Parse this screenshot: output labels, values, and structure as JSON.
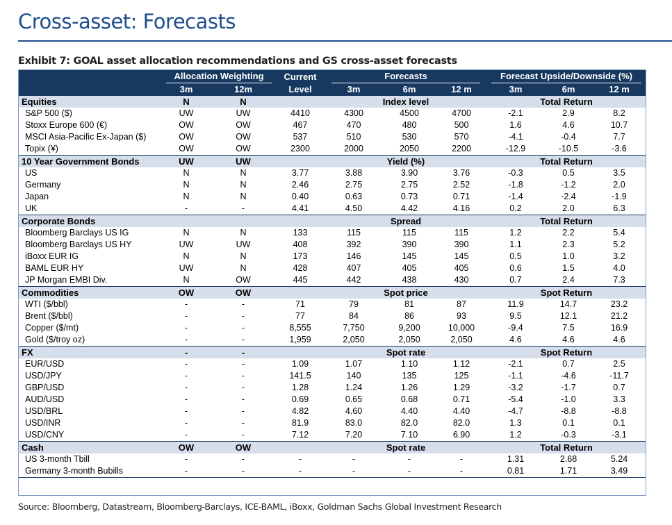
{
  "page_title": "Cross-asset: Forecasts",
  "exhibit_title": "Exhibit 7: GOAL asset allocation recommendations and GS cross-asset forecasts",
  "header": {
    "allocation_weighting": "Allocation Weighting",
    "current": "Current",
    "forecasts": "Forecasts",
    "upside": "Forecast Upside/Downside (%)",
    "alloc_3m": "3m",
    "alloc_12m": "12m",
    "level": "Level",
    "f_3m": "3m",
    "f_6m": "6m",
    "f_12m": "12 m",
    "u_3m": "3m",
    "u_6m": "6m",
    "u_12m": "12 m"
  },
  "sections": [
    {
      "name": "Equities",
      "alloc_3m": "N",
      "alloc_12m": "N",
      "forecast_label": "Index level",
      "return_label": "Total Return",
      "rows": [
        {
          "name": "S&P 500 ($)",
          "a3": "UW",
          "a12": "UW",
          "level": "4410",
          "f3": "4300",
          "f6": "4500",
          "f12": "4700",
          "u3": "-2.1",
          "u6": "2.9",
          "u12": "8.2"
        },
        {
          "name": "Stoxx Europe 600 (€)",
          "a3": "OW",
          "a12": "OW",
          "level": "467",
          "f3": "470",
          "f6": "480",
          "f12": "500",
          "u3": "1.6",
          "u6": "4.6",
          "u12": "10.7"
        },
        {
          "name": "MSCI Asia-Pacific Ex-Japan ($)",
          "a3": "OW",
          "a12": "OW",
          "level": "537",
          "f3": "510",
          "f6": "530",
          "f12": "570",
          "u3": "-4.1",
          "u6": "-0.4",
          "u12": "7.7"
        },
        {
          "name": "Topix (¥)",
          "a3": "OW",
          "a12": "OW",
          "level": "2300",
          "f3": "2000",
          "f6": "2050",
          "f12": "2200",
          "u3": "-12.9",
          "u6": "-10.5",
          "u12": "-3.6"
        }
      ]
    },
    {
      "name": "10 Year Government Bonds",
      "alloc_3m": "UW",
      "alloc_12m": "UW",
      "forecast_label": "Yield (%)",
      "return_label": "Total Return",
      "rows": [
        {
          "name": "US",
          "a3": "N",
          "a12": "N",
          "level": "3.77",
          "f3": "3.88",
          "f6": "3.90",
          "f12": "3.76",
          "u3": "-0.3",
          "u6": "0.5",
          "u12": "3.5"
        },
        {
          "name": "Germany",
          "a3": "N",
          "a12": "N",
          "level": "2.46",
          "f3": "2.75",
          "f6": "2.75",
          "f12": "2.52",
          "u3": "-1.8",
          "u6": "-1.2",
          "u12": "2.0"
        },
        {
          "name": "Japan",
          "a3": "N",
          "a12": "N",
          "level": "0.40",
          "f3": "0.63",
          "f6": "0.73",
          "f12": "0.71",
          "u3": "-1.4",
          "u6": "-2.4",
          "u12": "-1.9"
        },
        {
          "name": "UK",
          "a3": "-",
          "a12": "-",
          "level": "4.41",
          "f3": "4.50",
          "f6": "4.42",
          "f12": "4.16",
          "u3": "0.2",
          "u6": "2.0",
          "u12": "6.3"
        }
      ]
    },
    {
      "name": "Corporate Bonds",
      "alloc_3m": "",
      "alloc_12m": "",
      "forecast_label": "Spread",
      "return_label": "Total Return",
      "rows": [
        {
          "name": "Bloomberg Barclays US IG",
          "a3": "N",
          "a12": "N",
          "level": "133",
          "f3": "115",
          "f6": "115",
          "f12": "115",
          "u3": "1.2",
          "u6": "2.2",
          "u12": "5.4"
        },
        {
          "name": "Bloomberg Barclays US HY",
          "a3": "UW",
          "a12": "UW",
          "level": "408",
          "f3": "392",
          "f6": "390",
          "f12": "390",
          "u3": "1.1",
          "u6": "2.3",
          "u12": "5.2"
        },
        {
          "name": "iBoxx EUR IG",
          "a3": "N",
          "a12": "N",
          "level": "173",
          "f3": "146",
          "f6": "145",
          "f12": "145",
          "u3": "0.5",
          "u6": "1.0",
          "u12": "3.2"
        },
        {
          "name": "BAML EUR HY",
          "a3": "UW",
          "a12": "N",
          "level": "428",
          "f3": "407",
          "f6": "405",
          "f12": "405",
          "u3": "0.6",
          "u6": "1.5",
          "u12": "4.0"
        },
        {
          "name": "JP Morgan EMBI Div.",
          "a3": "N",
          "a12": "OW",
          "level": "445",
          "f3": "442",
          "f6": "438",
          "f12": "430",
          "u3": "0.7",
          "u6": "2.4",
          "u12": "7.3"
        }
      ]
    },
    {
      "name": "Commodities",
      "alloc_3m": "OW",
      "alloc_12m": "OW",
      "forecast_label": "Spot price",
      "return_label": "Spot Return",
      "rows": [
        {
          "name": "WTI  ($/bbl)",
          "a3": "-",
          "a12": "-",
          "level": "71",
          "f3": "79",
          "f6": "81",
          "f12": "87",
          "u3": "11.9",
          "u6": "14.7",
          "u12": "23.2"
        },
        {
          "name": "Brent ($/bbl)",
          "a3": "-",
          "a12": "-",
          "level": "77",
          "f3": "84",
          "f6": "86",
          "f12": "93",
          "u3": "9.5",
          "u6": "12.1",
          "u12": "21.2"
        },
        {
          "name": "Copper ($/mt)",
          "a3": "-",
          "a12": "-",
          "level": "8,555",
          "f3": "7,750",
          "f6": "9,200",
          "f12": "10,000",
          "u3": "-9.4",
          "u6": "7.5",
          "u12": "16.9"
        },
        {
          "name": "Gold ($/troy oz)",
          "a3": "-",
          "a12": "-",
          "level": "1,959",
          "f3": "2,050",
          "f6": "2,050",
          "f12": "2,050",
          "u3": "4.6",
          "u6": "4.6",
          "u12": "4.6"
        }
      ]
    },
    {
      "name": "FX",
      "alloc_3m": "-",
      "alloc_12m": "-",
      "forecast_label": "Spot rate",
      "return_label": "Spot Return",
      "rows": [
        {
          "name": "EUR/USD",
          "a3": "-",
          "a12": "-",
          "level": "1.09",
          "f3": "1.07",
          "f6": "1.10",
          "f12": "1.12",
          "u3": "-2.1",
          "u6": "0.7",
          "u12": "2.5"
        },
        {
          "name": "USD/JPY",
          "a3": "-",
          "a12": "-",
          "level": "141.5",
          "f3": "140",
          "f6": "135",
          "f12": "125",
          "u3": "-1.1",
          "u6": "-4.6",
          "u12": "-11.7"
        },
        {
          "name": "GBP/USD",
          "a3": "-",
          "a12": "-",
          "level": "1.28",
          "f3": "1.24",
          "f6": "1.26",
          "f12": "1.29",
          "u3": "-3.2",
          "u6": "-1.7",
          "u12": "0.7"
        },
        {
          "name": "AUD/USD",
          "a3": "-",
          "a12": "-",
          "level": "0.69",
          "f3": "0.65",
          "f6": "0.68",
          "f12": "0.71",
          "u3": "-5.4",
          "u6": "-1.0",
          "u12": "3.3"
        },
        {
          "name": "USD/BRL",
          "a3": "-",
          "a12": "-",
          "level": "4.82",
          "f3": "4.60",
          "f6": "4.40",
          "f12": "4.40",
          "u3": "-4.7",
          "u6": "-8.8",
          "u12": "-8.8"
        },
        {
          "name": "USD/INR",
          "a3": "-",
          "a12": "-",
          "level": "81.9",
          "f3": "83.0",
          "f6": "82.0",
          "f12": "82.0",
          "u3": "1.3",
          "u6": "0.1",
          "u12": "0.1"
        },
        {
          "name": "USD/CNY",
          "a3": "-",
          "a12": "-",
          "level": "7.12",
          "f3": "7.20",
          "f6": "7.10",
          "f12": "6.90",
          "u3": "1.2",
          "u6": "-0.3",
          "u12": "-3.1"
        }
      ]
    },
    {
      "name": "Cash",
      "alloc_3m": "OW",
      "alloc_12m": "OW",
      "forecast_label": "Spot rate",
      "return_label": "Total Return",
      "rows": [
        {
          "name": "US 3-month Tbill",
          "a3": "-",
          "a12": "-",
          "level": "-",
          "f3": "-",
          "f6": "-",
          "f12": "-",
          "u3": "1.31",
          "u6": "2.68",
          "u12": "5.24"
        },
        {
          "name": "Germany 3-month Bubills",
          "a3": "-",
          "a12": "-",
          "level": "-",
          "f3": "-",
          "f6": "-",
          "f12": "-",
          "u3": "0.81",
          "u6": "1.71",
          "u12": "3.49"
        }
      ]
    }
  ],
  "source": "Source: Bloomberg, Datastream, Bloomberg-Barclays, ICE-BAML, iBoxx, Goldman Sachs Global Investment Research"
}
